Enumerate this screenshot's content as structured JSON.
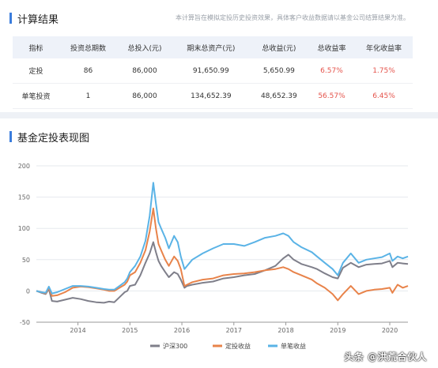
{
  "result": {
    "title": "计算结果",
    "disclaimer": "本计算旨在模拟定投历史投资效果，具体客户收益数据请以基金公司结算结果为准。",
    "headers": [
      "指标",
      "投资总期数",
      "总投入(元)",
      "期末总资产(元)",
      "总收益(元)",
      "总收益率",
      "年化收益率"
    ],
    "rows": [
      [
        "定投",
        "86",
        "86,000",
        "91,650.99",
        "5,650.99",
        "6.57%",
        "1.75%"
      ],
      [
        "单笔投资",
        "1",
        "86,000",
        "134,652.39",
        "48,652.39",
        "56.57%",
        "6.45%"
      ]
    ]
  },
  "chart_section": {
    "title": "基金定投表现图"
  },
  "watermark": "头条 @洪荒合伙人",
  "colors": {
    "accent": "#3b7ddd",
    "red": "#e5534b",
    "hs300": "#7f7f8a",
    "dingtou": "#e8834a",
    "danbi": "#5ab3e6"
  },
  "chart_data": {
    "type": "line",
    "title": "",
    "xlabel": "",
    "ylabel": "",
    "ylim": [
      -50,
      200
    ],
    "yticks": [
      -50,
      0,
      50,
      100,
      150,
      200
    ],
    "xlim": [
      2013.2,
      2020.35
    ],
    "xticks": [
      2014,
      2015,
      2016,
      2017,
      2018,
      2019,
      2020
    ],
    "grid": true,
    "legend_position": "bottom",
    "series": [
      {
        "name": "沪深300",
        "color": "#7f7f8a",
        "points": [
          [
            2013.2,
            0
          ],
          [
            2013.3,
            -3
          ],
          [
            2013.38,
            -5
          ],
          [
            2013.44,
            3
          ],
          [
            2013.5,
            -16
          ],
          [
            2013.6,
            -17
          ],
          [
            2013.75,
            -14
          ],
          [
            2013.9,
            -11
          ],
          [
            2014.05,
            -13
          ],
          [
            2014.2,
            -16
          ],
          [
            2014.35,
            -18
          ],
          [
            2014.5,
            -19
          ],
          [
            2014.6,
            -17
          ],
          [
            2014.7,
            -18
          ],
          [
            2014.8,
            -10
          ],
          [
            2014.9,
            -2
          ],
          [
            2014.95,
            0
          ],
          [
            2015.0,
            8
          ],
          [
            2015.1,
            10
          ],
          [
            2015.2,
            25
          ],
          [
            2015.3,
            45
          ],
          [
            2015.38,
            60
          ],
          [
            2015.45,
            78
          ],
          [
            2015.5,
            62
          ],
          [
            2015.55,
            48
          ],
          [
            2015.6,
            40
          ],
          [
            2015.68,
            30
          ],
          [
            2015.75,
            22
          ],
          [
            2015.85,
            30
          ],
          [
            2015.92,
            27
          ],
          [
            2015.98,
            18
          ],
          [
            2016.05,
            5
          ],
          [
            2016.1,
            8
          ],
          [
            2016.2,
            10
          ],
          [
            2016.4,
            13
          ],
          [
            2016.6,
            15
          ],
          [
            2016.8,
            20
          ],
          [
            2017.0,
            22
          ],
          [
            2017.2,
            25
          ],
          [
            2017.4,
            27
          ],
          [
            2017.6,
            33
          ],
          [
            2017.8,
            40
          ],
          [
            2017.95,
            52
          ],
          [
            2018.05,
            58
          ],
          [
            2018.15,
            50
          ],
          [
            2018.3,
            43
          ],
          [
            2018.5,
            38
          ],
          [
            2018.6,
            35
          ],
          [
            2018.75,
            28
          ],
          [
            2018.9,
            22
          ],
          [
            2019.0,
            20
          ],
          [
            2019.1,
            37
          ],
          [
            2019.25,
            45
          ],
          [
            2019.4,
            38
          ],
          [
            2019.55,
            42
          ],
          [
            2019.7,
            43
          ],
          [
            2019.85,
            44
          ],
          [
            2020.0,
            48
          ],
          [
            2020.05,
            38
          ],
          [
            2020.15,
            45
          ],
          [
            2020.25,
            44
          ],
          [
            2020.35,
            43
          ]
        ]
      },
      {
        "name": "定投收益",
        "color": "#e8834a",
        "points": [
          [
            2013.2,
            0
          ],
          [
            2013.3,
            -2
          ],
          [
            2013.38,
            -4
          ],
          [
            2013.44,
            5
          ],
          [
            2013.5,
            -8
          ],
          [
            2013.6,
            -7
          ],
          [
            2013.75,
            -2
          ],
          [
            2013.9,
            5
          ],
          [
            2014.05,
            7
          ],
          [
            2014.2,
            6
          ],
          [
            2014.35,
            4
          ],
          [
            2014.5,
            2
          ],
          [
            2014.6,
            0
          ],
          [
            2014.7,
            0
          ],
          [
            2014.8,
            5
          ],
          [
            2014.9,
            10
          ],
          [
            2014.95,
            15
          ],
          [
            2015.0,
            25
          ],
          [
            2015.1,
            30
          ],
          [
            2015.2,
            45
          ],
          [
            2015.3,
            65
          ],
          [
            2015.38,
            95
          ],
          [
            2015.45,
            132
          ],
          [
            2015.5,
            100
          ],
          [
            2015.55,
            75
          ],
          [
            2015.6,
            65
          ],
          [
            2015.68,
            50
          ],
          [
            2015.75,
            40
          ],
          [
            2015.85,
            55
          ],
          [
            2015.92,
            48
          ],
          [
            2015.98,
            35
          ],
          [
            2016.05,
            8
          ],
          [
            2016.1,
            10
          ],
          [
            2016.2,
            14
          ],
          [
            2016.4,
            18
          ],
          [
            2016.6,
            20
          ],
          [
            2016.8,
            25
          ],
          [
            2017.0,
            27
          ],
          [
            2017.2,
            28
          ],
          [
            2017.4,
            30
          ],
          [
            2017.6,
            33
          ],
          [
            2017.8,
            35
          ],
          [
            2017.95,
            38
          ],
          [
            2018.05,
            35
          ],
          [
            2018.15,
            30
          ],
          [
            2018.3,
            25
          ],
          [
            2018.5,
            18
          ],
          [
            2018.6,
            12
          ],
          [
            2018.75,
            5
          ],
          [
            2018.9,
            -5
          ],
          [
            2019.0,
            -15
          ],
          [
            2019.1,
            -5
          ],
          [
            2019.25,
            8
          ],
          [
            2019.4,
            -5
          ],
          [
            2019.55,
            0
          ],
          [
            2019.7,
            2
          ],
          [
            2019.85,
            3
          ],
          [
            2020.0,
            5
          ],
          [
            2020.05,
            -3
          ],
          [
            2020.15,
            10
          ],
          [
            2020.25,
            5
          ],
          [
            2020.35,
            8
          ]
        ]
      },
      {
        "name": "单笔收益",
        "color": "#5ab3e6",
        "points": [
          [
            2013.2,
            0
          ],
          [
            2013.3,
            -2
          ],
          [
            2013.38,
            -3
          ],
          [
            2013.44,
            7
          ],
          [
            2013.5,
            -4
          ],
          [
            2013.6,
            -2
          ],
          [
            2013.75,
            3
          ],
          [
            2013.9,
            8
          ],
          [
            2014.05,
            8
          ],
          [
            2014.2,
            7
          ],
          [
            2014.35,
            5
          ],
          [
            2014.5,
            3
          ],
          [
            2014.6,
            2
          ],
          [
            2014.7,
            2
          ],
          [
            2014.8,
            8
          ],
          [
            2014.9,
            14
          ],
          [
            2014.95,
            20
          ],
          [
            2015.0,
            30
          ],
          [
            2015.1,
            40
          ],
          [
            2015.2,
            55
          ],
          [
            2015.3,
            80
          ],
          [
            2015.38,
            120
          ],
          [
            2015.45,
            173
          ],
          [
            2015.5,
            140
          ],
          [
            2015.55,
            110
          ],
          [
            2015.6,
            100
          ],
          [
            2015.68,
            85
          ],
          [
            2015.75,
            68
          ],
          [
            2015.85,
            88
          ],
          [
            2015.92,
            78
          ],
          [
            2015.98,
            55
          ],
          [
            2016.05,
            35
          ],
          [
            2016.1,
            40
          ],
          [
            2016.2,
            50
          ],
          [
            2016.4,
            60
          ],
          [
            2016.6,
            68
          ],
          [
            2016.8,
            75
          ],
          [
            2017.0,
            75
          ],
          [
            2017.2,
            72
          ],
          [
            2017.4,
            78
          ],
          [
            2017.6,
            85
          ],
          [
            2017.8,
            88
          ],
          [
            2017.95,
            92
          ],
          [
            2018.05,
            88
          ],
          [
            2018.15,
            78
          ],
          [
            2018.3,
            70
          ],
          [
            2018.5,
            62
          ],
          [
            2018.6,
            55
          ],
          [
            2018.75,
            45
          ],
          [
            2018.9,
            35
          ],
          [
            2019.0,
            25
          ],
          [
            2019.1,
            45
          ],
          [
            2019.25,
            60
          ],
          [
            2019.4,
            45
          ],
          [
            2019.55,
            50
          ],
          [
            2019.7,
            52
          ],
          [
            2019.85,
            54
          ],
          [
            2020.0,
            60
          ],
          [
            2020.05,
            48
          ],
          [
            2020.15,
            55
          ],
          [
            2020.25,
            52
          ],
          [
            2020.35,
            55
          ]
        ]
      }
    ]
  }
}
